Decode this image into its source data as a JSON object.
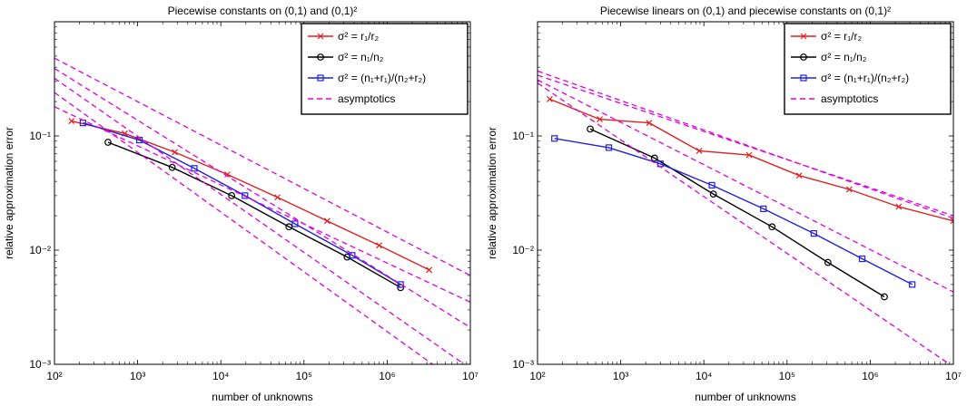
{
  "chart_data": [
    {
      "type": "line",
      "title": "Piecewise constants on (0,1) and (0,1)²",
      "xlabel": "number of unknowns",
      "ylabel": "relative approximation error",
      "x_scale": "log",
      "y_scale": "log",
      "xlim": [
        100,
        10000000
      ],
      "ylim": [
        0.001,
        1
      ],
      "x_tick_labels": [
        "10²",
        "10³",
        "10⁴",
        "10⁵",
        "10⁶",
        "10⁷"
      ],
      "y_tick_labels": [
        "10⁻³",
        "10⁻²",
        "10⁻¹"
      ],
      "legend_position": "top-right",
      "series": [
        {
          "name": "σ² = r₁/r₂",
          "color": "#e02020",
          "marker": "x",
          "x": [
            160,
            700,
            2800,
            12000,
            48000,
            190000,
            800000,
            3200000
          ],
          "y": [
            0.135,
            0.105,
            0.072,
            0.046,
            0.029,
            0.018,
            0.011,
            0.0067
          ]
        },
        {
          "name": "σ² = n₁/n₂",
          "color": "#000000",
          "marker": "o",
          "x": [
            440,
            2600,
            13500,
            66000,
            330000,
            1450000
          ],
          "y": [
            0.088,
            0.053,
            0.03,
            0.016,
            0.0087,
            0.0047
          ]
        },
        {
          "name": "σ² = (n₁+r₁)/(n₂+r₂)",
          "color": "#2020dd",
          "marker": "s",
          "x": [
            220,
            1050,
            4800,
            19500,
            78000,
            380000,
            1450000
          ],
          "y": [
            0.13,
            0.092,
            0.052,
            0.03,
            0.017,
            0.009,
            0.005
          ]
        },
        {
          "name": "asymptotics",
          "color": "#e000e0",
          "style": "dashed",
          "x": [
            100,
            10000000
          ],
          "y": [
            0.48,
            0.006
          ]
        },
        {
          "name": "",
          "color": "#e000e0",
          "style": "dashed",
          "x": [
            100,
            10000000
          ],
          "y": [
            0.39,
            0.0021
          ]
        },
        {
          "name": "",
          "color": "#e000e0",
          "style": "dashed",
          "x": [
            100,
            10000000
          ],
          "y": [
            0.32,
            0.00092
          ]
        },
        {
          "name": "",
          "color": "#e000e0",
          "style": "dashed",
          "x": [
            100,
            10000000
          ],
          "y": [
            0.24,
            0.00058
          ]
        },
        {
          "name": "",
          "color": "#e000e0",
          "style": "dashed",
          "x": [
            100,
            10000000
          ],
          "y": [
            0.18,
            0.0035
          ]
        }
      ]
    },
    {
      "type": "line",
      "title": "Piecewise linears on (0,1) and piecewise constants on (0,1)²",
      "xlabel": "number of unknowns",
      "ylabel": "relative approximation error",
      "x_scale": "log",
      "y_scale": "log",
      "xlim": [
        100,
        10000000
      ],
      "ylim": [
        0.001,
        1
      ],
      "x_tick_labels": [
        "10²",
        "10³",
        "10⁴",
        "10⁵",
        "10⁶",
        "10⁷"
      ],
      "y_tick_labels": [
        "10⁻³",
        "10⁻²",
        "10⁻¹"
      ],
      "legend_position": "top-right",
      "series": [
        {
          "name": "σ² = r₁/r₂",
          "color": "#e02020",
          "marker": "x",
          "x": [
            140,
            560,
            2200,
            8800,
            35000,
            140000,
            560000,
            2200000,
            10000000
          ],
          "y": [
            0.21,
            0.14,
            0.13,
            0.074,
            0.068,
            0.045,
            0.034,
            0.024,
            0.018
          ]
        },
        {
          "name": "σ² = n₁/n₂",
          "color": "#000000",
          "marker": "o",
          "x": [
            430,
            2550,
            13000,
            66000,
            310000,
            1480000
          ],
          "y": [
            0.115,
            0.064,
            0.031,
            0.016,
            0.0078,
            0.0039
          ]
        },
        {
          "name": "σ² = (n₁+r₁)/(n₂+r₂)",
          "color": "#2020dd",
          "marker": "s",
          "x": [
            160,
            720,
            3000,
            12500,
            52000,
            210000,
            800000,
            3200000
          ],
          "y": [
            0.095,
            0.079,
            0.057,
            0.037,
            0.023,
            0.014,
            0.0084,
            0.005
          ]
        },
        {
          "name": "asymptotics",
          "color": "#e000e0",
          "style": "dashed",
          "x": [
            100,
            10000000
          ],
          "y": [
            0.34,
            0.02
          ]
        },
        {
          "name": "",
          "color": "#e000e0",
          "style": "dashed",
          "x": [
            100,
            10000000
          ],
          "y": [
            0.31,
            0.0043
          ]
        },
        {
          "name": "",
          "color": "#e000e0",
          "style": "dashed",
          "x": [
            100,
            10000000
          ],
          "y": [
            0.29,
            0.00095
          ]
        },
        {
          "name": "",
          "color": "#e000e0",
          "style": "dashed",
          "x": [
            100,
            10000000
          ],
          "y": [
            0.37,
            0.019
          ]
        }
      ]
    }
  ]
}
